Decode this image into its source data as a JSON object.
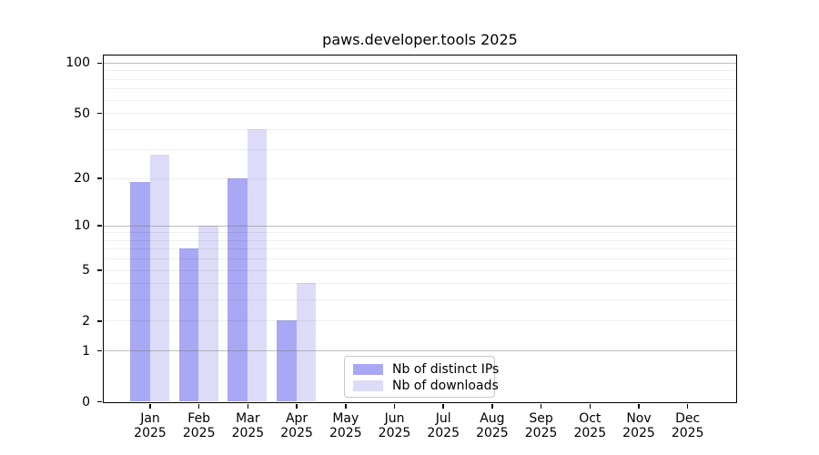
{
  "chart_data": {
    "type": "bar",
    "title": "paws.developer.tools 2025",
    "xlabel": "",
    "ylabel": "",
    "categories": [
      "Jan 2025",
      "Feb 2025",
      "Mar 2025",
      "Apr 2025",
      "May 2025",
      "Jun 2025",
      "Jul 2025",
      "Aug 2025",
      "Sep 2025",
      "Oct 2025",
      "Nov 2025",
      "Dec 2025"
    ],
    "series": [
      {
        "name": "Nb of distinct IPs",
        "color": "#a8a8f4",
        "values": [
          19,
          7,
          20,
          2,
          0,
          0,
          0,
          0,
          0,
          0,
          0,
          0
        ]
      },
      {
        "name": "Nb of downloads",
        "color": "#dcdcf8",
        "values": [
          28,
          10,
          40,
          4,
          0,
          0,
          0,
          0,
          0,
          0,
          0,
          0
        ]
      }
    ],
    "yaxis": {
      "scale": "log1p",
      "ylim": [
        0,
        113
      ],
      "tick_labels": [
        100,
        50,
        20,
        10,
        5,
        2,
        1,
        0
      ],
      "major_gridlines": [
        100,
        10,
        1
      ],
      "minor_gridlines": [
        2,
        3,
        4,
        5,
        6,
        7,
        8,
        9,
        20,
        30,
        40,
        50,
        60,
        70,
        80,
        90
      ]
    },
    "grid": "on",
    "legend": {
      "position": "bottom-center",
      "entries": [
        "Nb of distinct IPs",
        "Nb of downloads"
      ]
    }
  },
  "colors": {
    "distinct_ips": "#a8a8f4",
    "downloads": "#dcdcf8",
    "axis": "#000000",
    "major_grid": "#c6c6c6",
    "minor_grid": "#ededed",
    "legend_border": "#c9c9c9",
    "background": "#ffffff"
  }
}
